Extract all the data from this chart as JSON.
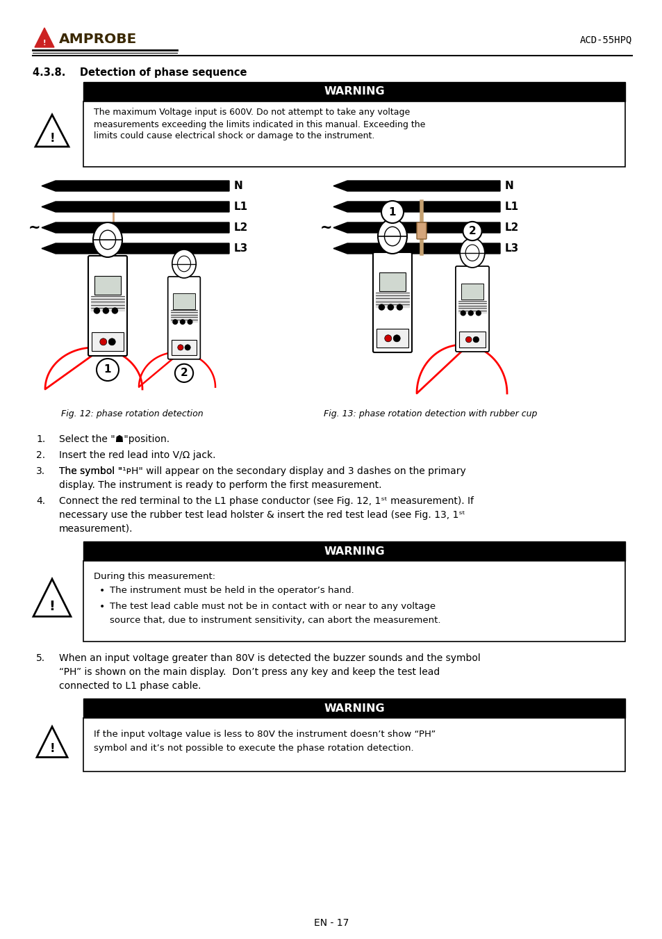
{
  "page_width": 9.54,
  "page_height": 13.51,
  "bg_color": "#ffffff",
  "model_text": "ACD-55HPQ",
  "section_title": "4.3.8.    Detection of phase sequence",
  "warning1_title": "WARNING",
  "warning1_text_line1": "The maximum Voltage input is 600V. Do not attempt to take any voltage",
  "warning1_text_line2": "measurements exceeding the limits indicated in this manual. Exceeding the",
  "warning1_text_line3": "limits could cause electrical shock or damage to the instrument.",
  "fig12_caption": "Fig. 12: phase rotation detection",
  "fig13_caption": "Fig. 13: phase rotation detection with rubber cup",
  "warning2_title": "WARNING",
  "warning2_intro": "During this measurement:",
  "warning2_b1": "The instrument must be held in the operator’s hand.",
  "warning2_b2a": "The test lead cable must not be in contact with or near to any voltage",
  "warning2_b2b": "source that, due to instrument sensitivity, can abort the measurement.",
  "step5_line1": "When an input voltage greater than 80V is detected the buzzer sounds and the symbol",
  "step5_line2": "“PH” is shown on the main display.  Don’t press any key and keep the test lead",
  "step5_line3": "connected to L1 phase cable.",
  "warning3_title": "WARNING",
  "warning3_line1": "If the input voltage value is less to 80V the instrument doesn’t show “PH”",
  "warning3_line2": "symbol and it’s not possible to execute the phase rotation detection.",
  "footer_text": "EN - 17",
  "label_N": "N",
  "label_L1": "L1",
  "label_L2": "L2",
  "label_L3": "L3"
}
